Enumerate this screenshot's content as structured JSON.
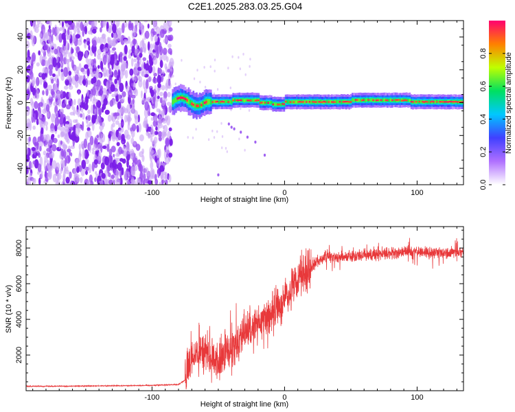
{
  "title": "C2E1.2025.283.03.25.G04",
  "chart_data": [
    {
      "type": "heatmap",
      "name": "spectrogram",
      "xlabel": "Height of straight line (km)",
      "ylabel": "Frequency (Hz)",
      "xlim": [
        -195,
        135
      ],
      "ylim": [
        -50,
        50
      ],
      "xticks": [
        -100,
        0,
        100
      ],
      "xtick_labels": [
        "-100",
        "0",
        "100"
      ],
      "yticks": [
        -40,
        -20,
        0,
        20,
        40
      ],
      "ytick_labels": [
        "-40",
        "-20",
        "0",
        "20",
        "40"
      ],
      "noise_region_x": [
        -195,
        -85
      ],
      "signal_region_x": [
        -85,
        135
      ],
      "signal_frequency_hz": 0.5,
      "colorbar": {
        "label": "Normalized spectral amplitude",
        "range": [
          0,
          1
        ],
        "ticks": [
          0.0,
          0.2,
          0.4,
          0.6,
          0.8
        ],
        "tick_labels": [
          "0.0",
          "0.2",
          "0.4",
          "0.6",
          "0.8"
        ],
        "colors": [
          "#ffffff",
          "#b070ff",
          "#4040ff",
          "#00c8ff",
          "#00e060",
          "#c0ff00",
          "#ff8000",
          "#ff0070"
        ]
      }
    },
    {
      "type": "line",
      "name": "snr",
      "xlabel": "Height of straight line (km)",
      "ylabel": "SNR (10 * v/v)",
      "xlim": [
        -195,
        135
      ],
      "ylim": [
        0,
        9200
      ],
      "xticks": [
        -100,
        0,
        100
      ],
      "xtick_labels": [
        "-100",
        "0",
        "100"
      ],
      "yticks": [
        2000,
        4000,
        6000,
        8000
      ],
      "ytick_labels": [
        "2000",
        "4000",
        "6000",
        "8000"
      ],
      "color": "#e8383a",
      "x": [
        -195,
        -150,
        -100,
        -80,
        -75,
        -70,
        -60,
        -50,
        -40,
        -30,
        -20,
        -10,
        0,
        10,
        20,
        25,
        30,
        40,
        60,
        80,
        100,
        120,
        135
      ],
      "values": [
        250,
        260,
        300,
        350,
        600,
        1800,
        2200,
        1500,
        2500,
        3200,
        3800,
        4300,
        5200,
        6100,
        6900,
        7300,
        7500,
        7500,
        7600,
        7700,
        7800,
        7700,
        7800
      ]
    }
  ]
}
